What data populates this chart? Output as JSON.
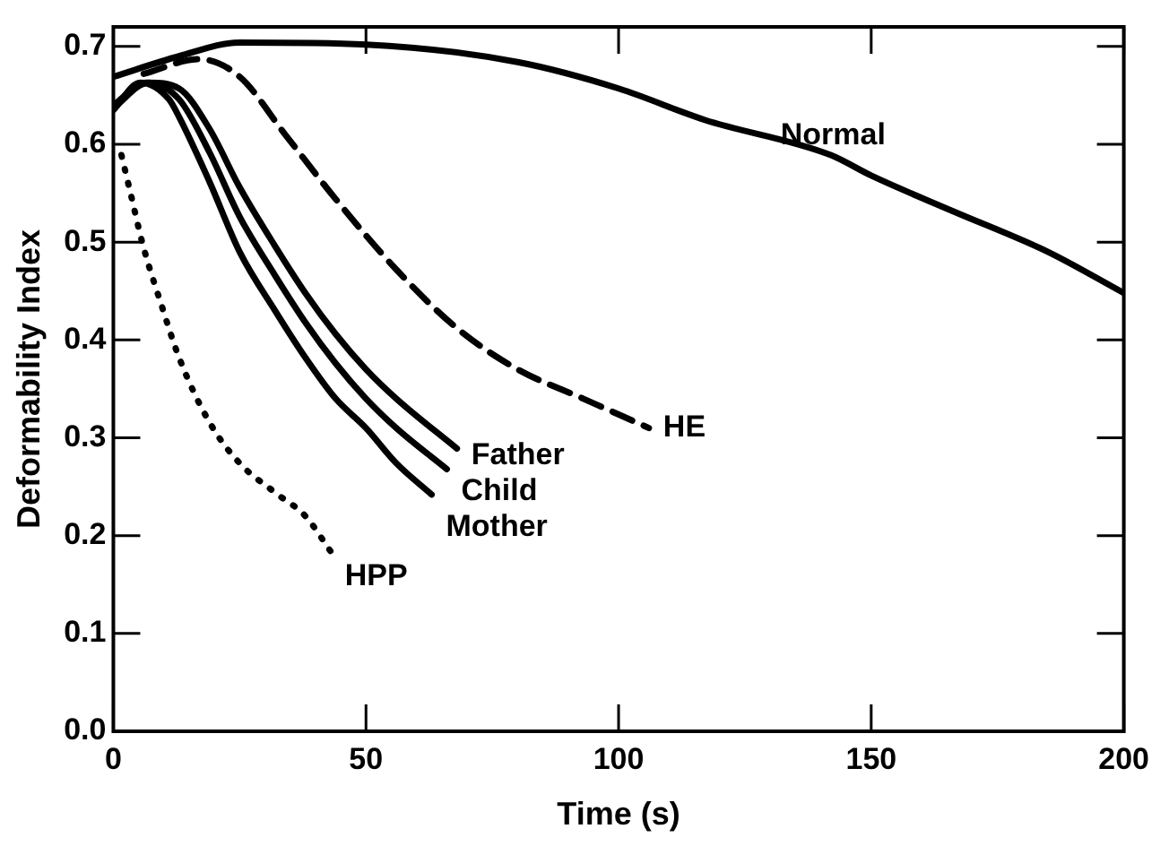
{
  "chart_data": {
    "type": "line",
    "xlabel": "Time (s)",
    "ylabel": "Deformability Index",
    "xlim": [
      0,
      200
    ],
    "xticks": [
      0,
      50,
      100,
      150,
      200
    ],
    "ylim": [
      0,
      0.72
    ],
    "yticks": [
      {
        "value": 0,
        "label": "0.0"
      },
      0.1,
      0.2,
      0.3,
      0.4,
      0.5,
      0.6,
      0.7
    ],
    "grid": false,
    "legend": false,
    "marker": "none",
    "series": [
      {
        "name": "Normal",
        "color": "#000000",
        "line_style": "solid",
        "x": [
          0,
          13,
          25,
          50,
          80,
          100,
          117,
          142,
          150,
          166,
          185,
          200
        ],
        "values": [
          0.669,
          0.69,
          0.704,
          0.702,
          0.684,
          0.657,
          0.625,
          0.589,
          0.568,
          0.532,
          0.49,
          0.448
        ]
      },
      {
        "name": "HE",
        "color": "#000000",
        "line_style": "dashed",
        "x": [
          6,
          17,
          25,
          34,
          44,
          56,
          68,
          80,
          93,
          106
        ],
        "values": [
          0.672,
          0.687,
          0.669,
          0.61,
          0.544,
          0.472,
          0.412,
          0.37,
          0.34,
          0.31
        ]
      },
      {
        "name": "Father",
        "color": "#000000",
        "line_style": "solid",
        "x": [
          0,
          7,
          13,
          19,
          25,
          32,
          38,
          44,
          50,
          56,
          68
        ],
        "values": [
          0.637,
          0.663,
          0.657,
          0.616,
          0.556,
          0.496,
          0.448,
          0.406,
          0.37,
          0.34,
          0.289
        ]
      },
      {
        "name": "Child",
        "color": "#000000",
        "line_style": "solid",
        "x": [
          0,
          6.5,
          13,
          19,
          25,
          32,
          38,
          44,
          50,
          56,
          66
        ],
        "values": [
          0.64,
          0.663,
          0.646,
          0.592,
          0.526,
          0.466,
          0.418,
          0.376,
          0.34,
          0.31,
          0.268
        ]
      },
      {
        "name": "Mother",
        "color": "#000000",
        "line_style": "solid",
        "x": [
          0,
          5.3,
          11,
          13,
          19,
          25,
          32,
          38,
          44,
          50,
          56,
          63
        ],
        "values": [
          0.635,
          0.663,
          0.646,
          0.628,
          0.562,
          0.49,
          0.43,
          0.382,
          0.34,
          0.31,
          0.274,
          0.242
        ]
      },
      {
        "name": "HPP",
        "color": "#000000",
        "line_style": "dotted",
        "x": [
          1.6,
          3.4,
          5.9,
          9.5,
          13,
          19,
          25,
          32,
          38,
          43
        ],
        "values": [
          0.589,
          0.55,
          0.496,
          0.436,
          0.382,
          0.316,
          0.274,
          0.244,
          0.22,
          0.184
        ]
      }
    ]
  }
}
